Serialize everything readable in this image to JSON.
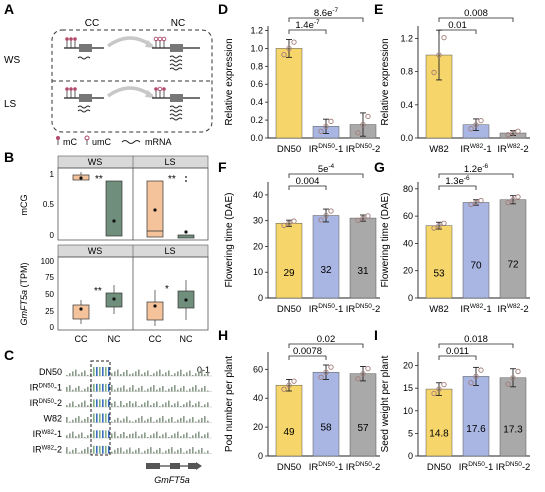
{
  "colors": {
    "yellow": "#f6d66a",
    "blue": "#a9b6e3",
    "gray": "#a9a9a9",
    "orange": "#f4c39b",
    "green": "#6f8f7c",
    "track_blue": "#3a6cc0",
    "track_green": "#7fb07f",
    "dot": "#a37c78"
  },
  "panels": {
    "A": {
      "label": "A",
      "col_left": "CC",
      "col_right": "NC",
      "rows": [
        "WS",
        "LS"
      ],
      "legend": [
        "mC",
        "umC",
        "mRNA"
      ]
    },
    "B": {
      "label": "B",
      "top": {
        "ylabel": "mCG",
        "yticks": [
          "0",
          "0.5",
          "1"
        ],
        "headers": [
          "WS",
          "LS"
        ],
        "sig": [
          "**",
          "**"
        ]
      },
      "bottom": {
        "ylabel_gene": "GmFT5a",
        "ylabel_unit": " (TPM)",
        "yticks": [
          "0",
          "25",
          "50",
          "75",
          "100"
        ],
        "headers": [
          "WS",
          "LS"
        ],
        "sig": [
          "**",
          "*"
        ],
        "xticks": [
          "CC",
          "NC",
          "CC",
          "NC"
        ]
      }
    },
    "C": {
      "label": "C",
      "scale": "0-1",
      "gene": "GmFT5a",
      "tracks": [
        {
          "name": "DN50",
          "sup": ""
        },
        {
          "name": "IR",
          "sup": "DN50",
          "suffix": "-1"
        },
        {
          "name": "IR",
          "sup": "DN50",
          "suffix": "-2"
        },
        {
          "name": "W82",
          "sup": ""
        },
        {
          "name": "IR",
          "sup": "W82",
          "suffix": "-1"
        },
        {
          "name": "IR",
          "sup": "W82",
          "suffix": "-2"
        }
      ]
    },
    "D": {
      "label": "D",
      "ylabel": "Relative expression",
      "yticks": [
        "0.0",
        "0.2",
        "0.4",
        "0.6",
        "0.8",
        "1.0",
        "1.2"
      ],
      "xticks": [
        {
          "t": "DN50",
          "s": "",
          "x": ""
        },
        {
          "t": "IR",
          "s": "DN50",
          "x": "-1"
        },
        {
          "t": "IR",
          "s": "DN50",
          "x": "-2"
        }
      ],
      "pvals": [
        "8.6e",
        "-7",
        "1.4e",
        "-7"
      ]
    },
    "E": {
      "label": "E",
      "ylabel": "Relative expression",
      "yticks": [
        "0.0",
        "0.4",
        "0.8",
        "1.2"
      ],
      "xticks": [
        {
          "t": "W82",
          "s": "",
          "x": ""
        },
        {
          "t": "IR",
          "s": "W82",
          "x": "-1"
        },
        {
          "t": "IR",
          "s": "W82",
          "x": "-2"
        }
      ],
      "pvals": [
        "0.008",
        "0.01"
      ]
    },
    "F": {
      "label": "F",
      "ylabel": "Flowering time (DAE)",
      "yticks": [
        "0",
        "10",
        "20",
        "30",
        "40"
      ],
      "xticks": [
        {
          "t": "DN50",
          "s": "",
          "x": ""
        },
        {
          "t": "IR",
          "s": "DN50",
          "x": "-1"
        },
        {
          "t": "IR",
          "s": "DN50",
          "x": "-2"
        }
      ],
      "bar_labels": [
        "29",
        "32",
        "31"
      ],
      "pvals": [
        "5e",
        "-4",
        "0.004"
      ]
    },
    "G": {
      "label": "G",
      "ylabel": "Flowering time (DAE)",
      "yticks": [
        "0",
        "20",
        "40",
        "60",
        "80"
      ],
      "xticks": [
        {
          "t": "W82",
          "s": "",
          "x": ""
        },
        {
          "t": "IR",
          "s": "W82",
          "x": "-1"
        },
        {
          "t": "IR",
          "s": "W82",
          "x": "-2"
        }
      ],
      "bar_labels": [
        "53",
        "70",
        "72"
      ],
      "pvals": [
        "1.2e",
        "-6",
        "1.3e",
        "-6"
      ]
    },
    "H": {
      "label": "H",
      "ylabel": "Pod number per plant",
      "yticks": [
        "0",
        "20",
        "40",
        "60"
      ],
      "xticks": [
        {
          "t": "DN50",
          "s": "",
          "x": ""
        },
        {
          "t": "IR",
          "s": "DN50",
          "x": "-1"
        },
        {
          "t": "IR",
          "s": "DN50",
          "x": "-2"
        }
      ],
      "bar_labels": [
        "49",
        "58",
        "57"
      ],
      "pvals": [
        "0.02",
        "0.0078"
      ]
    },
    "I": {
      "label": "I",
      "ylabel": "Seed weight per plant",
      "yticks": [
        "0",
        "5",
        "10",
        "15",
        "20"
      ],
      "xticks": [
        {
          "t": "DN50",
          "s": "",
          "x": ""
        },
        {
          "t": "IR",
          "s": "DN50",
          "x": "-1"
        },
        {
          "t": "IR",
          "s": "DN50",
          "x": "-2"
        }
      ],
      "bar_labels": [
        "14.8",
        "17.6",
        "17.3"
      ],
      "pvals": [
        "0.018",
        "0.011"
      ]
    }
  },
  "chart_data": [
    {
      "panel": "D",
      "type": "bar",
      "ylabel": "Relative expression",
      "ylim": [
        0,
        1.25
      ],
      "values": [
        1.0,
        0.13,
        0.15
      ],
      "errors": [
        0.1,
        0.08,
        0.13
      ]
    },
    {
      "panel": "E",
      "type": "bar",
      "ylabel": "Relative expression",
      "ylim": [
        0,
        1.35
      ],
      "values": [
        1.0,
        0.16,
        0.06
      ],
      "errors": [
        0.3,
        0.07,
        0.03
      ]
    },
    {
      "panel": "F",
      "type": "bar",
      "ylabel": "Flowering time (DAE)",
      "ylim": [
        0,
        45
      ],
      "values": [
        29,
        32,
        31
      ],
      "errors": [
        1.2,
        2.5,
        1.2
      ]
    },
    {
      "panel": "G",
      "type": "bar",
      "ylabel": "Flowering time (DAE)",
      "ylim": [
        0,
        85
      ],
      "values": [
        53,
        70,
        72
      ],
      "errors": [
        2.5,
        2.0,
        3.0
      ]
    },
    {
      "panel": "H",
      "type": "bar",
      "ylabel": "Pod number per plant",
      "ylim": [
        0,
        72
      ],
      "values": [
        49,
        58,
        57
      ],
      "errors": [
        4,
        5,
        5
      ]
    },
    {
      "panel": "I",
      "type": "bar",
      "ylabel": "Seed weight per plant",
      "ylim": [
        0,
        23
      ],
      "values": [
        14.8,
        17.6,
        17.3
      ],
      "errors": [
        1.4,
        2.0,
        2.0
      ]
    }
  ]
}
